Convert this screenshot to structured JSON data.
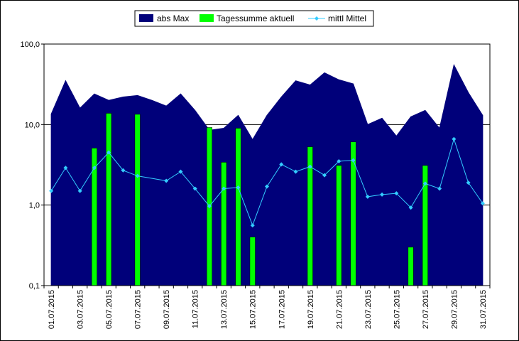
{
  "chart_data": {
    "type": "area",
    "yscale": "log",
    "ylim": [
      0.1,
      100
    ],
    "yticks": [
      "0,1",
      "1,0",
      "10,0",
      "100,0"
    ],
    "grid": "horizontal major lines",
    "legend_position": "top-center",
    "colors": {
      "abs_max": "#00007A",
      "tagessumme": "#00FF00",
      "mittl_mittel": "#33CCFF"
    },
    "xticks": [
      "01.07.2015",
      "03.07.2015",
      "05.07.2015",
      "07.07.2015",
      "09.07.2015",
      "11.07.2015",
      "13.07.2015",
      "15.07.2015",
      "17.07.2015",
      "19.07.2015",
      "21.07.2015",
      "23.07.2015",
      "25.07.2015",
      "27.07.2015",
      "29.07.2015",
      "31.07.2015"
    ],
    "x": [
      "01.07.2015",
      "02.07.2015",
      "03.07.2015",
      "04.07.2015",
      "05.07.2015",
      "06.07.2015",
      "07.07.2015",
      "08.07.2015",
      "09.07.2015",
      "10.07.2015",
      "11.07.2015",
      "12.07.2015",
      "13.07.2015",
      "14.07.2015",
      "15.07.2015",
      "16.07.2015",
      "17.07.2015",
      "18.07.2015",
      "19.07.2015",
      "20.07.2015",
      "21.07.2015",
      "22.07.2015",
      "23.07.2015",
      "24.07.2015",
      "25.07.2015",
      "26.07.2015",
      "27.07.2015",
      "28.07.2015",
      "29.07.2015",
      "30.07.2015",
      "31.07.2015"
    ],
    "series": [
      {
        "name": "abs Max",
        "kind": "area",
        "values": [
          13.5,
          35,
          16,
          24,
          20,
          22,
          23,
          20,
          17,
          24,
          15,
          8.5,
          9,
          13,
          6.5,
          13,
          22,
          35,
          31,
          44,
          36,
          32,
          10,
          12,
          7.2,
          12.5,
          15,
          9,
          55,
          25,
          13
        ]
      },
      {
        "name": "Tagessumme aktuell",
        "kind": "bar",
        "values": [
          null,
          null,
          null,
          5.1,
          13.8,
          null,
          13.4,
          null,
          null,
          null,
          null,
          9.2,
          3.4,
          9.0,
          0.4,
          null,
          null,
          null,
          5.3,
          null,
          3.1,
          6.1,
          null,
          null,
          null,
          0.3,
          3.1,
          null,
          null,
          null,
          null
        ]
      },
      {
        "name": "mittl Mittel",
        "kind": "line",
        "values": [
          1.5,
          2.9,
          1.5,
          2.9,
          4.5,
          2.7,
          2.3,
          null,
          2.0,
          2.6,
          1.6,
          0.97,
          1.6,
          1.65,
          0.56,
          1.7,
          3.2,
          2.6,
          3.0,
          2.35,
          3.5,
          3.6,
          1.27,
          1.35,
          1.4,
          0.93,
          1.85,
          1.6,
          6.6,
          1.9,
          1.05
        ]
      }
    ]
  }
}
